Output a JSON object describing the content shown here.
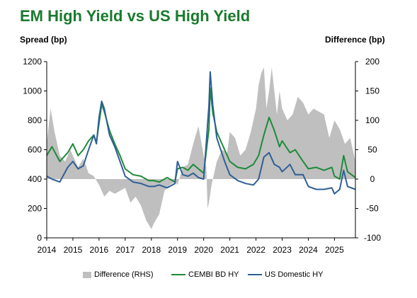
{
  "title": "EM High Yield vs US High Yield",
  "left_axis_title": "Spread (bp)",
  "right_axis_title": "Difference (bp)",
  "colors": {
    "title": "#1a7a2e",
    "cembi": "#1e8a3a",
    "us": "#2f5f97",
    "difference": "#bfbfbf"
  },
  "legend": [
    {
      "label": "Difference (RHS)",
      "symbol": "box",
      "color": "#bfbfbf"
    },
    {
      "label": "CEMBI BD HY",
      "symbol": "line",
      "color": "#1e8a3a"
    },
    {
      "label": "US Domestic HY",
      "symbol": "line",
      "color": "#2f5f97"
    }
  ],
  "chart_data": {
    "type": "line",
    "x_label": "",
    "xlim": [
      2014.0,
      2025.8
    ],
    "x_ticks": [
      "2014",
      "2015",
      "2016",
      "2017",
      "2018",
      "2019",
      "2020",
      "2021",
      "2022",
      "2023",
      "2024",
      "2025"
    ],
    "y_left": {
      "label": "Spread (bp)",
      "ylim": [
        0,
        1200
      ],
      "ticks": [
        0,
        200,
        400,
        600,
        800,
        1000,
        1200
      ]
    },
    "y_right": {
      "label": "Difference (bp)",
      "ylim": [
        -100,
        200
      ],
      "ticks": [
        -100,
        -50,
        0,
        50,
        100,
        150,
        200
      ]
    },
    "grid": false,
    "legend_position": "bottom",
    "series": [
      {
        "name": "CEMBI BD HY",
        "axis": "left",
        "points": [
          [
            2014.0,
            560
          ],
          [
            2014.2,
            620
          ],
          [
            2014.5,
            520
          ],
          [
            2014.8,
            580
          ],
          [
            2015.0,
            640
          ],
          [
            2015.2,
            560
          ],
          [
            2015.4,
            600
          ],
          [
            2015.6,
            660
          ],
          [
            2015.8,
            700
          ],
          [
            2015.9,
            650
          ],
          [
            2016.0,
            780
          ],
          [
            2016.1,
            910
          ],
          [
            2016.2,
            860
          ],
          [
            2016.4,
            730
          ],
          [
            2016.6,
            640
          ],
          [
            2016.8,
            560
          ],
          [
            2017.0,
            470
          ],
          [
            2017.3,
            430
          ],
          [
            2017.6,
            420
          ],
          [
            2017.9,
            390
          ],
          [
            2018.1,
            390
          ],
          [
            2018.3,
            380
          ],
          [
            2018.6,
            410
          ],
          [
            2018.9,
            380
          ],
          [
            2019.0,
            470
          ],
          [
            2019.2,
            480
          ],
          [
            2019.4,
            460
          ],
          [
            2019.6,
            500
          ],
          [
            2019.8,
            470
          ],
          [
            2020.0,
            440
          ],
          [
            2020.2,
            740
          ],
          [
            2020.25,
            1020
          ],
          [
            2020.35,
            850
          ],
          [
            2020.5,
            720
          ],
          [
            2020.8,
            600
          ],
          [
            2021.0,
            520
          ],
          [
            2021.3,
            480
          ],
          [
            2021.6,
            470
          ],
          [
            2021.9,
            500
          ],
          [
            2022.1,
            560
          ],
          [
            2022.3,
            700
          ],
          [
            2022.5,
            820
          ],
          [
            2022.7,
            730
          ],
          [
            2022.9,
            620
          ],
          [
            2023.0,
            660
          ],
          [
            2023.3,
            580
          ],
          [
            2023.5,
            600
          ],
          [
            2023.8,
            520
          ],
          [
            2024.0,
            470
          ],
          [
            2024.3,
            480
          ],
          [
            2024.6,
            460
          ],
          [
            2024.9,
            480
          ],
          [
            2025.0,
            420
          ],
          [
            2025.2,
            400
          ],
          [
            2025.35,
            560
          ],
          [
            2025.5,
            450
          ],
          [
            2025.8,
            410
          ]
        ]
      },
      {
        "name": "US Domestic HY",
        "axis": "left",
        "points": [
          [
            2014.0,
            420
          ],
          [
            2014.2,
            400
          ],
          [
            2014.5,
            380
          ],
          [
            2014.8,
            480
          ],
          [
            2015.0,
            520
          ],
          [
            2015.2,
            470
          ],
          [
            2015.4,
            490
          ],
          [
            2015.6,
            600
          ],
          [
            2015.8,
            700
          ],
          [
            2015.9,
            640
          ],
          [
            2016.0,
            820
          ],
          [
            2016.1,
            930
          ],
          [
            2016.2,
            880
          ],
          [
            2016.4,
            700
          ],
          [
            2016.6,
            620
          ],
          [
            2016.8,
            520
          ],
          [
            2017.0,
            420
          ],
          [
            2017.3,
            380
          ],
          [
            2017.6,
            370
          ],
          [
            2017.9,
            350
          ],
          [
            2018.1,
            350
          ],
          [
            2018.3,
            360
          ],
          [
            2018.6,
            340
          ],
          [
            2018.9,
            370
          ],
          [
            2019.0,
            520
          ],
          [
            2019.2,
            430
          ],
          [
            2019.4,
            420
          ],
          [
            2019.6,
            440
          ],
          [
            2019.8,
            410
          ],
          [
            2020.0,
            400
          ],
          [
            2020.2,
            900
          ],
          [
            2020.25,
            1130
          ],
          [
            2020.35,
            900
          ],
          [
            2020.5,
            680
          ],
          [
            2020.8,
            520
          ],
          [
            2021.0,
            430
          ],
          [
            2021.3,
            390
          ],
          [
            2021.6,
            370
          ],
          [
            2021.9,
            360
          ],
          [
            2022.1,
            400
          ],
          [
            2022.3,
            550
          ],
          [
            2022.5,
            580
          ],
          [
            2022.7,
            500
          ],
          [
            2022.9,
            480
          ],
          [
            2023.0,
            450
          ],
          [
            2023.3,
            500
          ],
          [
            2023.5,
            430
          ],
          [
            2023.8,
            430
          ],
          [
            2024.0,
            350
          ],
          [
            2024.3,
            330
          ],
          [
            2024.6,
            330
          ],
          [
            2024.9,
            340
          ],
          [
            2025.0,
            300
          ],
          [
            2025.2,
            330
          ],
          [
            2025.35,
            460
          ],
          [
            2025.5,
            350
          ],
          [
            2025.8,
            330
          ]
        ]
      },
      {
        "name": "Difference (RHS)",
        "axis": "right",
        "kind": "area",
        "points": [
          [
            2014.0,
            60
          ],
          [
            2014.15,
            120
          ],
          [
            2014.3,
            80
          ],
          [
            2014.5,
            40
          ],
          [
            2014.7,
            30
          ],
          [
            2014.9,
            50
          ],
          [
            2015.0,
            40
          ],
          [
            2015.2,
            20
          ],
          [
            2015.4,
            35
          ],
          [
            2015.6,
            10
          ],
          [
            2015.8,
            5
          ],
          [
            2016.0,
            -10
          ],
          [
            2016.2,
            -30
          ],
          [
            2016.4,
            -20
          ],
          [
            2016.6,
            -25
          ],
          [
            2016.8,
            -20
          ],
          [
            2017.0,
            -15
          ],
          [
            2017.2,
            -40
          ],
          [
            2017.4,
            -30
          ],
          [
            2017.6,
            -45
          ],
          [
            2017.8,
            -70
          ],
          [
            2018.0,
            -85
          ],
          [
            2018.1,
            -75
          ],
          [
            2018.3,
            -60
          ],
          [
            2018.5,
            -20
          ],
          [
            2018.7,
            -10
          ],
          [
            2018.9,
            -5
          ],
          [
            2019.0,
            -10
          ],
          [
            2019.2,
            20
          ],
          [
            2019.4,
            25
          ],
          [
            2019.6,
            60
          ],
          [
            2019.8,
            90
          ],
          [
            2020.0,
            40
          ],
          [
            2020.1,
            20
          ],
          [
            2020.15,
            -50
          ],
          [
            2020.2,
            -40
          ],
          [
            2020.3,
            -10
          ],
          [
            2020.5,
            30
          ],
          [
            2020.7,
            50
          ],
          [
            2020.9,
            45
          ],
          [
            2021.0,
            80
          ],
          [
            2021.2,
            70
          ],
          [
            2021.4,
            40
          ],
          [
            2021.6,
            50
          ],
          [
            2021.8,
            80
          ],
          [
            2022.0,
            120
          ],
          [
            2022.1,
            160
          ],
          [
            2022.2,
            180
          ],
          [
            2022.3,
            190
          ],
          [
            2022.4,
            120
          ],
          [
            2022.5,
            150
          ],
          [
            2022.6,
            190
          ],
          [
            2022.7,
            150
          ],
          [
            2022.8,
            110
          ],
          [
            2022.9,
            150
          ],
          [
            2023.0,
            120
          ],
          [
            2023.2,
            100
          ],
          [
            2023.4,
            110
          ],
          [
            2023.6,
            140
          ],
          [
            2023.8,
            130
          ],
          [
            2024.0,
            110
          ],
          [
            2024.2,
            120
          ],
          [
            2024.4,
            115
          ],
          [
            2024.6,
            110
          ],
          [
            2024.8,
            70
          ],
          [
            2025.0,
            100
          ],
          [
            2025.2,
            85
          ],
          [
            2025.4,
            60
          ],
          [
            2025.6,
            70
          ],
          [
            2025.8,
            30
          ]
        ]
      }
    ]
  }
}
